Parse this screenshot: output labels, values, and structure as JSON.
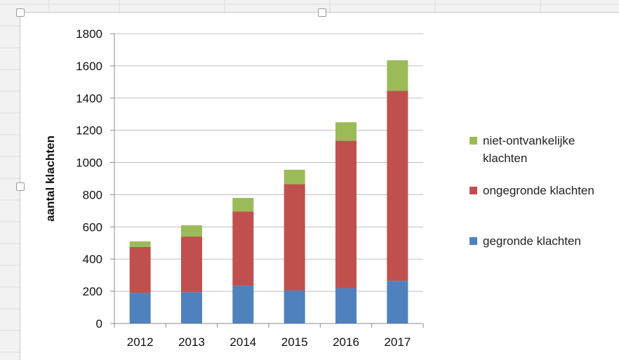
{
  "chart_data": {
    "type": "bar",
    "stacked": true,
    "categories": [
      "2012",
      "2013",
      "2014",
      "2015",
      "2016",
      "2017"
    ],
    "series": [
      {
        "name": "gegronde klachten",
        "color": "#4f81bd",
        "values": [
          190,
          195,
          235,
          205,
          220,
          265
        ]
      },
      {
        "name": "ongegronde klachten",
        "color": "#c0504d",
        "values": [
          285,
          345,
          460,
          660,
          915,
          1180
        ]
      },
      {
        "name": "niet-ontvankelijke klachten",
        "color": "#9bbb59",
        "values": [
          35,
          70,
          85,
          90,
          115,
          190
        ]
      }
    ],
    "title": "",
    "xlabel": "",
    "ylabel": "aantal klachten",
    "ylim": [
      0,
      1800
    ],
    "yticks": [
      0,
      200,
      400,
      600,
      800,
      1000,
      1200,
      1400,
      1600,
      1800
    ],
    "grid": true,
    "legend_position": "right"
  },
  "legend": {
    "items": [
      {
        "label_line1": "niet-ontvankelijke",
        "label_line2": "klachten",
        "color": "#9bbb59"
      },
      {
        "label_line1": "ongegronde klachten",
        "label_line2": "",
        "color": "#c0504d"
      },
      {
        "label_line1": "gegronde klachten",
        "label_line2": "",
        "color": "#4f81bd"
      }
    ]
  }
}
